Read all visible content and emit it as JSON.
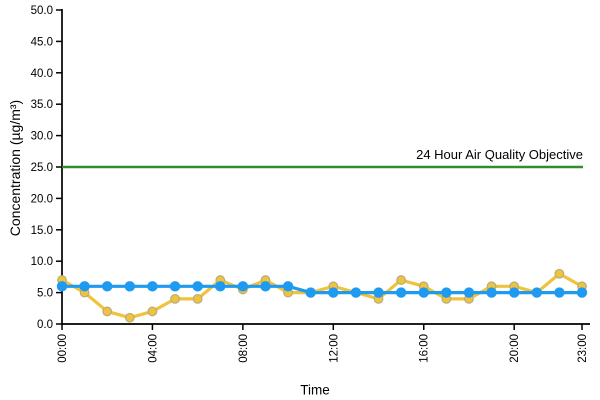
{
  "chart_data": {
    "type": "line",
    "title": "",
    "xlabel": "Time",
    "ylabel": "Concentration (µg/m³)",
    "ylim": [
      0,
      50
    ],
    "ytick_step": 5,
    "ytick_labels": [
      "0.0",
      "5.0",
      "10.0",
      "15.0",
      "20.0",
      "25.0",
      "30.0",
      "35.0",
      "40.0",
      "45.0",
      "50.0"
    ],
    "categories": [
      "00:00",
      "01:00",
      "02:00",
      "03:00",
      "04:00",
      "05:00",
      "06:00",
      "07:00",
      "08:00",
      "09:00",
      "10:00",
      "11:00",
      "12:00",
      "13:00",
      "14:00",
      "15:00",
      "16:00",
      "17:00",
      "18:00",
      "19:00",
      "20:00",
      "21:00",
      "22:00",
      "23:00"
    ],
    "xticks": [
      {
        "hour": 0,
        "label": "00:00"
      },
      {
        "hour": 4,
        "label": "04:00"
      },
      {
        "hour": 8,
        "label": "08:00"
      },
      {
        "hour": 12,
        "label": "12:00"
      },
      {
        "hour": 16,
        "label": "16:00"
      },
      {
        "hour": 20,
        "label": "20:00"
      },
      {
        "hour": 23,
        "label": "23:00"
      }
    ],
    "series": [
      {
        "name": "series-yellow",
        "color": "#f0c33c",
        "marker_outline": "#b7ab83",
        "values": [
          7,
          5,
          2,
          1,
          2,
          4,
          4,
          7,
          5.5,
          7,
          5,
          5,
          6,
          5,
          4,
          7,
          6,
          4,
          4,
          6,
          6,
          5,
          8,
          6
        ]
      },
      {
        "name": "series-blue",
        "color": "#1e9af0",
        "marker_outline": "#1e9af0",
        "values": [
          6,
          6,
          6,
          6,
          6,
          6,
          6,
          6,
          6,
          6,
          6,
          5,
          5,
          5,
          5,
          5,
          5,
          5,
          5,
          5,
          5,
          5,
          5,
          5
        ]
      }
    ],
    "reference_line": {
      "label": "24 Hour Air Quality Objective",
      "value": 25,
      "color": "#2e8f2e"
    },
    "grid": false,
    "legend": "none",
    "axis_color": "#000000",
    "background": "#ffffff"
  }
}
